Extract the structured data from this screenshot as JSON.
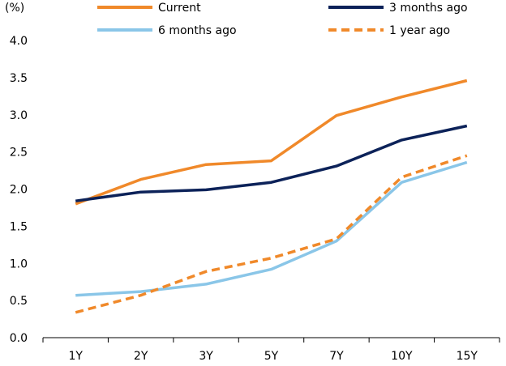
{
  "chart_data": {
    "type": "line",
    "ylabel": "(%)",
    "categories": [
      "1Y",
      "2Y",
      "3Y",
      "5Y",
      "7Y",
      "10Y",
      "15Y"
    ],
    "ylim": [
      0.0,
      4.0
    ],
    "yticks": [
      "0.0",
      "0.5",
      "1.0",
      "1.5",
      "2.0",
      "2.5",
      "3.0",
      "3.5",
      "4.0"
    ],
    "grid": false,
    "legend_position": "top",
    "series": [
      {
        "name": "Current",
        "color": "#f0892a",
        "dash": false,
        "values": [
          1.8,
          2.13,
          2.33,
          2.38,
          2.99,
          3.24,
          3.46
        ]
      },
      {
        "name": "3 months ago",
        "color": "#0c2259",
        "dash": false,
        "values": [
          1.84,
          1.96,
          1.99,
          2.09,
          2.31,
          2.66,
          2.85
        ]
      },
      {
        "name": "6 months ago",
        "color": "#8ac6e8",
        "dash": false,
        "values": [
          0.57,
          0.62,
          0.72,
          0.92,
          1.3,
          2.09,
          2.36
        ]
      },
      {
        "name": "1 year ago",
        "color": "#f0892a",
        "dash": true,
        "values": [
          0.34,
          0.57,
          0.89,
          1.07,
          1.33,
          2.16,
          2.45
        ]
      }
    ]
  }
}
